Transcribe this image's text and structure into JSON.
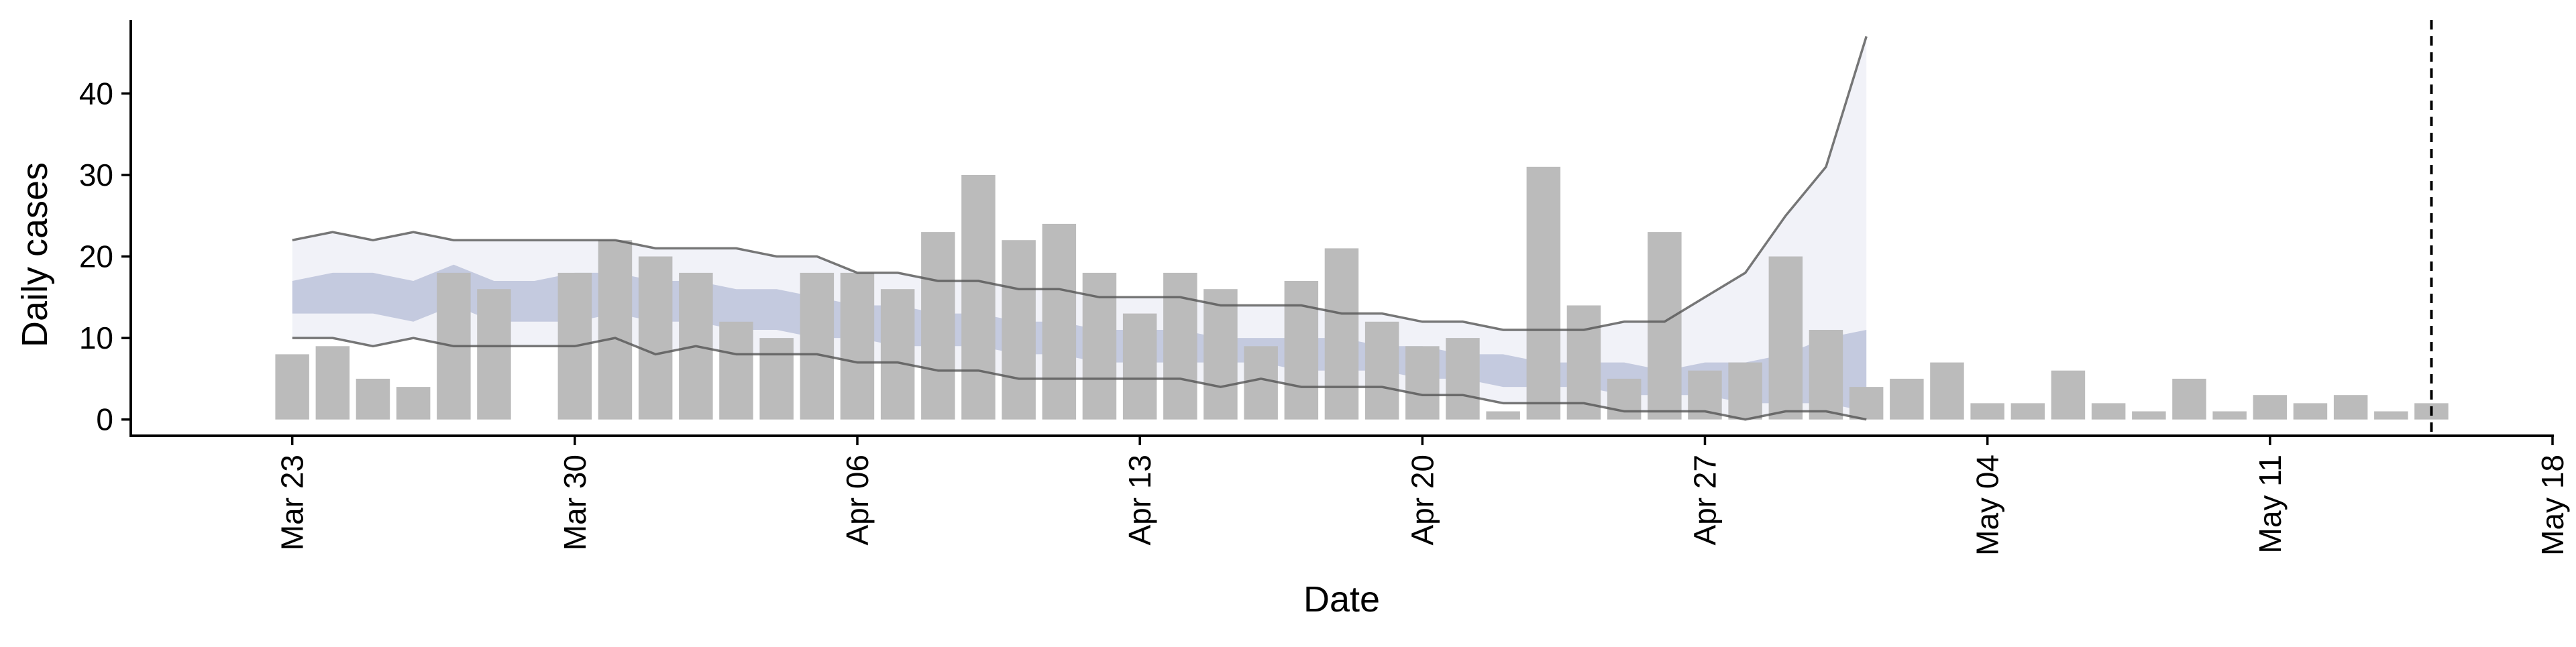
{
  "chart_data": {
    "type": "bar",
    "title": "",
    "xlabel": "Date",
    "ylabel": "Daily cases",
    "ylim": [
      -2,
      49
    ],
    "xlim": [
      "2020-03-19",
      "2020-05-18"
    ],
    "y_ticks": [
      0,
      10,
      20,
      30,
      40
    ],
    "x_ticks": [
      {
        "date": "2020-03-23",
        "label": "Mar 23"
      },
      {
        "date": "2020-03-30",
        "label": "Mar 30"
      },
      {
        "date": "2020-04-06",
        "label": "Apr 06"
      },
      {
        "date": "2020-04-13",
        "label": "Apr 13"
      },
      {
        "date": "2020-04-20",
        "label": "Apr 20"
      },
      {
        "date": "2020-04-27",
        "label": "Apr 27"
      },
      {
        "date": "2020-05-04",
        "label": "May 04"
      },
      {
        "date": "2020-05-11",
        "label": "May 11"
      },
      {
        "date": "2020-05-18",
        "label": "May 18"
      }
    ],
    "grid": false,
    "legend": "none",
    "reference_line": {
      "date": "2020-05-15",
      "style": "dashed"
    },
    "series": [
      {
        "kind": "bar",
        "color": "#bbbbbb",
        "x": [
          "2020-03-23",
          "2020-03-24",
          "2020-03-25",
          "2020-03-26",
          "2020-03-27",
          "2020-03-28",
          "2020-03-29",
          "2020-03-30",
          "2020-03-31",
          "2020-04-01",
          "2020-04-02",
          "2020-04-03",
          "2020-04-04",
          "2020-04-05",
          "2020-04-06",
          "2020-04-07",
          "2020-04-08",
          "2020-04-09",
          "2020-04-10",
          "2020-04-11",
          "2020-04-12",
          "2020-04-13",
          "2020-04-14",
          "2020-04-15",
          "2020-04-16",
          "2020-04-17",
          "2020-04-18",
          "2020-04-19",
          "2020-04-20",
          "2020-04-21",
          "2020-04-22",
          "2020-04-23",
          "2020-04-24",
          "2020-04-25",
          "2020-04-26",
          "2020-04-27",
          "2020-04-28",
          "2020-04-29",
          "2020-04-30",
          "2020-05-01",
          "2020-05-02",
          "2020-05-03",
          "2020-05-04",
          "2020-05-05",
          "2020-05-06",
          "2020-05-07",
          "2020-05-08",
          "2020-05-09",
          "2020-05-10",
          "2020-05-11",
          "2020-05-12",
          "2020-05-13",
          "2020-05-14",
          "2020-05-15"
        ],
        "values": [
          8,
          9,
          5,
          4,
          18,
          16,
          0,
          18,
          22,
          20,
          18,
          12,
          10,
          18,
          18,
          16,
          23,
          30,
          22,
          24,
          18,
          13,
          18,
          16,
          9,
          17,
          21,
          12,
          9,
          10,
          1,
          31,
          14,
          5,
          23,
          6,
          7,
          20,
          11,
          4,
          5,
          7,
          2,
          2,
          6,
          2,
          1,
          5,
          1,
          3,
          2,
          3,
          1,
          2
        ]
      },
      {
        "kind": "band",
        "color": "#b7bedb",
        "opacity": 0.2,
        "x": [
          "2020-03-23",
          "2020-03-24",
          "2020-03-25",
          "2020-03-26",
          "2020-03-27",
          "2020-03-28",
          "2020-03-29",
          "2020-03-30",
          "2020-03-31",
          "2020-04-01",
          "2020-04-02",
          "2020-04-03",
          "2020-04-04",
          "2020-04-05",
          "2020-04-06",
          "2020-04-07",
          "2020-04-08",
          "2020-04-09",
          "2020-04-10",
          "2020-04-11",
          "2020-04-12",
          "2020-04-13",
          "2020-04-14",
          "2020-04-15",
          "2020-04-16",
          "2020-04-17",
          "2020-04-18",
          "2020-04-19",
          "2020-04-20",
          "2020-04-21",
          "2020-04-22",
          "2020-04-23",
          "2020-04-24",
          "2020-04-25",
          "2020-04-26",
          "2020-04-27",
          "2020-04-28",
          "2020-04-29",
          "2020-04-30",
          "2020-05-01"
        ],
        "lower": [
          10,
          10,
          9,
          10,
          9,
          9,
          9,
          9,
          10,
          8,
          9,
          8,
          8,
          8,
          7,
          7,
          6,
          6,
          5,
          5,
          5,
          5,
          5,
          4,
          5,
          4,
          4,
          4,
          3,
          3,
          2,
          2,
          2,
          1,
          1,
          1,
          0,
          1,
          1,
          0
        ],
        "upper": [
          22,
          23,
          22,
          23,
          22,
          22,
          22,
          22,
          22,
          21,
          21,
          21,
          20,
          20,
          18,
          18,
          17,
          17,
          16,
          16,
          15,
          15,
          15,
          14,
          14,
          14,
          13,
          13,
          12,
          12,
          11,
          11,
          11,
          12,
          12,
          15,
          18,
          25,
          31,
          47
        ]
      },
      {
        "kind": "band",
        "color": "#8e9ac0",
        "opacity": 0.45,
        "x": [
          "2020-03-23",
          "2020-03-24",
          "2020-03-25",
          "2020-03-26",
          "2020-03-27",
          "2020-03-28",
          "2020-03-29",
          "2020-03-30",
          "2020-03-31",
          "2020-04-01",
          "2020-04-02",
          "2020-04-03",
          "2020-04-04",
          "2020-04-05",
          "2020-04-06",
          "2020-04-07",
          "2020-04-08",
          "2020-04-09",
          "2020-04-10",
          "2020-04-11",
          "2020-04-12",
          "2020-04-13",
          "2020-04-14",
          "2020-04-15",
          "2020-04-16",
          "2020-04-17",
          "2020-04-18",
          "2020-04-19",
          "2020-04-20",
          "2020-04-21",
          "2020-04-22",
          "2020-04-23",
          "2020-04-24",
          "2020-04-25",
          "2020-04-26",
          "2020-04-27",
          "2020-04-28",
          "2020-04-29",
          "2020-04-30",
          "2020-05-01"
        ],
        "lower": [
          13,
          13,
          13,
          12,
          14,
          12,
          12,
          12,
          13,
          12,
          12,
          11,
          11,
          10,
          10,
          9,
          9,
          9,
          8,
          8,
          7,
          7,
          7,
          7,
          7,
          6,
          6,
          6,
          5,
          5,
          4,
          4,
          4,
          3,
          3,
          3,
          2,
          2,
          2,
          1
        ],
        "upper": [
          17,
          18,
          18,
          17,
          19,
          17,
          17,
          18,
          18,
          17,
          17,
          16,
          16,
          15,
          14,
          14,
          13,
          13,
          12,
          12,
          11,
          11,
          11,
          10,
          10,
          10,
          10,
          9,
          9,
          8,
          8,
          7,
          7,
          7,
          6,
          7,
          7,
          8,
          10,
          11
        ]
      },
      {
        "kind": "line",
        "color": "#555555",
        "x": [
          "2020-03-23",
          "2020-03-24",
          "2020-03-25",
          "2020-03-26",
          "2020-03-27",
          "2020-03-28",
          "2020-03-29",
          "2020-03-30",
          "2020-03-31",
          "2020-04-01",
          "2020-04-02",
          "2020-04-03",
          "2020-04-04",
          "2020-04-05",
          "2020-04-06",
          "2020-04-07",
          "2020-04-08",
          "2020-04-09",
          "2020-04-10",
          "2020-04-11",
          "2020-04-12",
          "2020-04-13",
          "2020-04-14",
          "2020-04-15",
          "2020-04-16",
          "2020-04-17",
          "2020-04-18",
          "2020-04-19",
          "2020-04-20",
          "2020-04-21",
          "2020-04-22",
          "2020-04-23",
          "2020-04-24",
          "2020-04-25",
          "2020-04-26",
          "2020-04-27",
          "2020-04-28",
          "2020-04-29",
          "2020-04-30",
          "2020-05-01"
        ],
        "values": [
          22,
          23,
          22,
          23,
          22,
          22,
          22,
          22,
          22,
          21,
          21,
          21,
          20,
          20,
          18,
          18,
          17,
          17,
          16,
          16,
          15,
          15,
          15,
          14,
          14,
          14,
          13,
          13,
          12,
          12,
          11,
          11,
          11,
          12,
          12,
          15,
          18,
          25,
          31,
          47
        ]
      },
      {
        "kind": "line",
        "color": "#555555",
        "x": [
          "2020-03-23",
          "2020-03-24",
          "2020-03-25",
          "2020-03-26",
          "2020-03-27",
          "2020-03-28",
          "2020-03-29",
          "2020-03-30",
          "2020-03-31",
          "2020-04-01",
          "2020-04-02",
          "2020-04-03",
          "2020-04-04",
          "2020-04-05",
          "2020-04-06",
          "2020-04-07",
          "2020-04-08",
          "2020-04-09",
          "2020-04-10",
          "2020-04-11",
          "2020-04-12",
          "2020-04-13",
          "2020-04-14",
          "2020-04-15",
          "2020-04-16",
          "2020-04-17",
          "2020-04-18",
          "2020-04-19",
          "2020-04-20",
          "2020-04-21",
          "2020-04-22",
          "2020-04-23",
          "2020-04-24",
          "2020-04-25",
          "2020-04-26",
          "2020-04-27",
          "2020-04-28",
          "2020-04-29",
          "2020-04-30",
          "2020-05-01"
        ],
        "values": [
          10,
          10,
          9,
          10,
          9,
          9,
          9,
          9,
          10,
          8,
          9,
          8,
          8,
          8,
          7,
          7,
          6,
          6,
          5,
          5,
          5,
          5,
          5,
          4,
          5,
          4,
          4,
          4,
          3,
          3,
          2,
          2,
          2,
          1,
          1,
          1,
          0,
          1,
          1,
          0
        ]
      }
    ]
  }
}
